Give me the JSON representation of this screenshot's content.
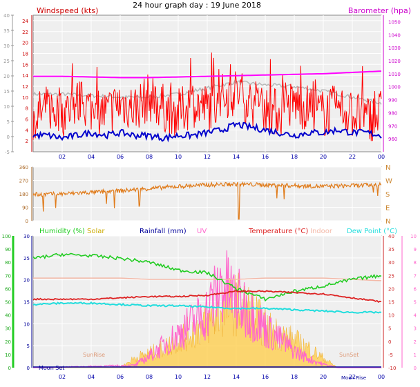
{
  "page": {
    "title": "24 hour graph day : 19 June 2018"
  },
  "colors": {
    "wind": "#ff0000",
    "gust": "#ff0000",
    "wind_avg": "#0000cc",
    "baro": "#ff00ff",
    "baro_gray": "#b8b8b8",
    "dir": "#e07b1a",
    "humidity": "#22cc22",
    "solar": "#ffcc44",
    "rain": "#000099",
    "uv": "#ff66cc",
    "temp": "#dd2222",
    "indoor": "#f4b9a8",
    "dew": "#22dddd",
    "frame_bg": "#efefef"
  },
  "chart_data": [
    {
      "type": "line",
      "panel": "wind-baro",
      "x_hours": [
        0,
        2,
        4,
        6,
        8,
        10,
        12,
        14,
        16,
        18,
        20,
        22,
        24
      ],
      "x_tick_labels": [
        "02",
        "04",
        "06",
        "08",
        "10",
        "12",
        "14",
        "16",
        "18",
        "20",
        "22",
        "00"
      ],
      "left_axis": {
        "label": "Windspeed (kts)",
        "ticks": [
          2,
          4,
          6,
          8,
          10,
          12,
          14,
          16,
          18,
          20,
          22,
          24
        ],
        "ylim": [
          0,
          25
        ]
      },
      "far_left_axis": {
        "ticks": [
          -5,
          0,
          5,
          10,
          15,
          20,
          25,
          30,
          35,
          40
        ],
        "ylim": [
          -5,
          40
        ]
      },
      "right_axis": {
        "label": "Barometer (hpa)",
        "ticks": [
          960,
          970,
          980,
          990,
          1000,
          1010,
          1020,
          1030,
          1040,
          1050
        ],
        "ylim": [
          950,
          1055
        ]
      },
      "series": [
        {
          "name": "Windspeed (kts)",
          "axis": "left",
          "x": [
            0,
            1,
            2,
            3,
            4,
            5,
            6,
            7,
            8,
            9,
            10,
            11,
            12,
            13,
            14,
            15,
            16,
            17,
            18,
            19,
            20,
            21,
            22,
            23,
            24
          ],
          "y": [
            6,
            8,
            7,
            9,
            8,
            7,
            9,
            8,
            10,
            8,
            7,
            9,
            8,
            10,
            11,
            9,
            8,
            7,
            9,
            8,
            7,
            8,
            7,
            6,
            7
          ]
        },
        {
          "name": "Wind average",
          "axis": "left",
          "x": [
            0,
            1,
            2,
            3,
            4,
            5,
            6,
            7,
            8,
            9,
            10,
            11,
            12,
            13,
            14,
            15,
            16,
            17,
            18,
            19,
            20,
            21,
            22,
            23,
            24
          ],
          "y": [
            3,
            3,
            2.5,
            3,
            3.5,
            3,
            3.5,
            3,
            3,
            2.5,
            3,
            3,
            3.5,
            4,
            5,
            4.5,
            4,
            3.5,
            3,
            3.5,
            3.5,
            4,
            3.5,
            3.5,
            3
          ]
        },
        {
          "name": "Barometer (hpa)",
          "axis": "right",
          "x": [
            0,
            2,
            4,
            6,
            8,
            10,
            12,
            14,
            16,
            18,
            20,
            22,
            24
          ],
          "y": [
            1008,
            1008,
            1007.5,
            1007,
            1007,
            1007.5,
            1008,
            1008.5,
            1009,
            1009.5,
            1010,
            1011,
            1012
          ]
        },
        {
          "name": "Barometer gray",
          "axis": "far_left",
          "x": [
            0,
            2,
            4,
            6,
            8,
            10,
            12,
            14,
            16,
            18,
            20,
            22,
            24
          ],
          "y": [
            14,
            14,
            13.5,
            13,
            13,
            14,
            16,
            18,
            17,
            16.5,
            15,
            13,
            11
          ]
        }
      ]
    },
    {
      "type": "line",
      "panel": "wind-direction",
      "x_hours": [
        0,
        2,
        4,
        6,
        8,
        10,
        12,
        14,
        16,
        18,
        20,
        22,
        24
      ],
      "left_axis": {
        "ticks": [
          0,
          90,
          180,
          270,
          360
        ],
        "ylim": [
          0,
          360
        ]
      },
      "right_labels": [
        "N",
        "W",
        "S",
        "E",
        "N"
      ],
      "series": [
        {
          "name": "Direction",
          "x": [
            0,
            2,
            4,
            6,
            8,
            10,
            12,
            14,
            16,
            18,
            20,
            22,
            24
          ],
          "y": [
            175,
            180,
            190,
            200,
            215,
            230,
            240,
            245,
            240,
            235,
            230,
            235,
            240
          ]
        }
      ]
    },
    {
      "type": "line",
      "panel": "temp-humidity",
      "x_hours": [
        0,
        2,
        4,
        6,
        8,
        10,
        12,
        14,
        16,
        18,
        20,
        22,
        24
      ],
      "x_tick_labels": [
        "02",
        "04",
        "06",
        "08",
        "10",
        "12",
        "14",
        "16",
        "18",
        "20",
        "22",
        "00"
      ],
      "legend": [
        "Humidity (%)",
        "Solar",
        "Rainfall (mm)",
        "UV",
        "Temperature (°C)",
        "Indoor",
        "Dew Point (°C)"
      ],
      "axes": {
        "humidity": {
          "ticks": [
            0,
            10,
            20,
            30,
            40,
            50,
            60,
            70,
            80,
            90,
            100
          ],
          "ylim": [
            0,
            100
          ]
        },
        "rain": {
          "ticks": [
            0,
            5,
            10,
            15,
            20,
            25,
            30
          ],
          "ylim": [
            0,
            30
          ]
        },
        "temp": {
          "ticks": [
            -10,
            -5,
            0,
            5,
            10,
            15,
            20,
            25,
            30,
            35,
            40
          ],
          "ylim": [
            -10,
            40
          ]
        },
        "uv": {
          "ticks": [
            0,
            1,
            2,
            3,
            4,
            5,
            6,
            7,
            8,
            9,
            10
          ],
          "ylim": [
            0,
            10
          ]
        }
      },
      "annotations": [
        "Moon Set",
        "SunRise",
        "SunSet",
        "Moon Rise"
      ],
      "series": [
        {
          "name": "Humidity (%)",
          "axis": "humidity",
          "x": [
            0,
            2,
            4,
            6,
            8,
            10,
            12,
            14,
            16,
            18,
            20,
            22,
            24
          ],
          "y": [
            83,
            86,
            85,
            83,
            80,
            74,
            72,
            60,
            52,
            58,
            62,
            67,
            70
          ]
        },
        {
          "name": "Temperature (°C)",
          "axis": "temp",
          "x": [
            0,
            2,
            4,
            6,
            8,
            10,
            12,
            14,
            16,
            18,
            20,
            22,
            24
          ],
          "y": [
            16,
            16,
            16,
            16.5,
            17,
            17,
            17.5,
            19,
            19,
            18.5,
            18,
            16.5,
            15
          ]
        },
        {
          "name": "Indoor",
          "axis": "temp",
          "x": [
            0,
            2,
            4,
            6,
            8,
            10,
            12,
            14,
            16,
            18,
            20,
            22,
            24
          ],
          "y": [
            24,
            24,
            24,
            24,
            23.5,
            23.5,
            23.5,
            23.5,
            24,
            24,
            24,
            23.5,
            23
          ]
        },
        {
          "name": "Dew Point (°C)",
          "axis": "temp",
          "x": [
            0,
            2,
            4,
            6,
            8,
            10,
            12,
            14,
            16,
            18,
            20,
            22,
            24
          ],
          "y": [
            14,
            14.5,
            14.5,
            14,
            13.5,
            13.5,
            13,
            12.5,
            12.5,
            12,
            11.5,
            11,
            11
          ]
        },
        {
          "name": "Solar",
          "axis": "humidity",
          "x": [
            0,
            6,
            7,
            8,
            9,
            10,
            11,
            12,
            13,
            14,
            15,
            16,
            17,
            18,
            19,
            20,
            21,
            24
          ],
          "y": [
            0,
            0,
            10,
            15,
            20,
            30,
            38,
            46,
            60,
            68,
            58,
            42,
            35,
            28,
            20,
            10,
            0,
            0
          ]
        },
        {
          "name": "UV",
          "axis": "uv",
          "x": [
            0,
            7,
            8,
            9,
            10,
            11,
            12,
            13,
            14,
            15,
            16,
            17,
            18,
            19,
            20,
            21,
            24
          ],
          "y": [
            0,
            0.2,
            1,
            2,
            3,
            4,
            5,
            7.5,
            6,
            5,
            3.5,
            2.5,
            1.5,
            0.8,
            0.3,
            0,
            0
          ]
        },
        {
          "name": "Rainfall (mm)",
          "axis": "rain",
          "x": [
            0,
            24
          ],
          "y": [
            0,
            0
          ]
        }
      ]
    }
  ]
}
